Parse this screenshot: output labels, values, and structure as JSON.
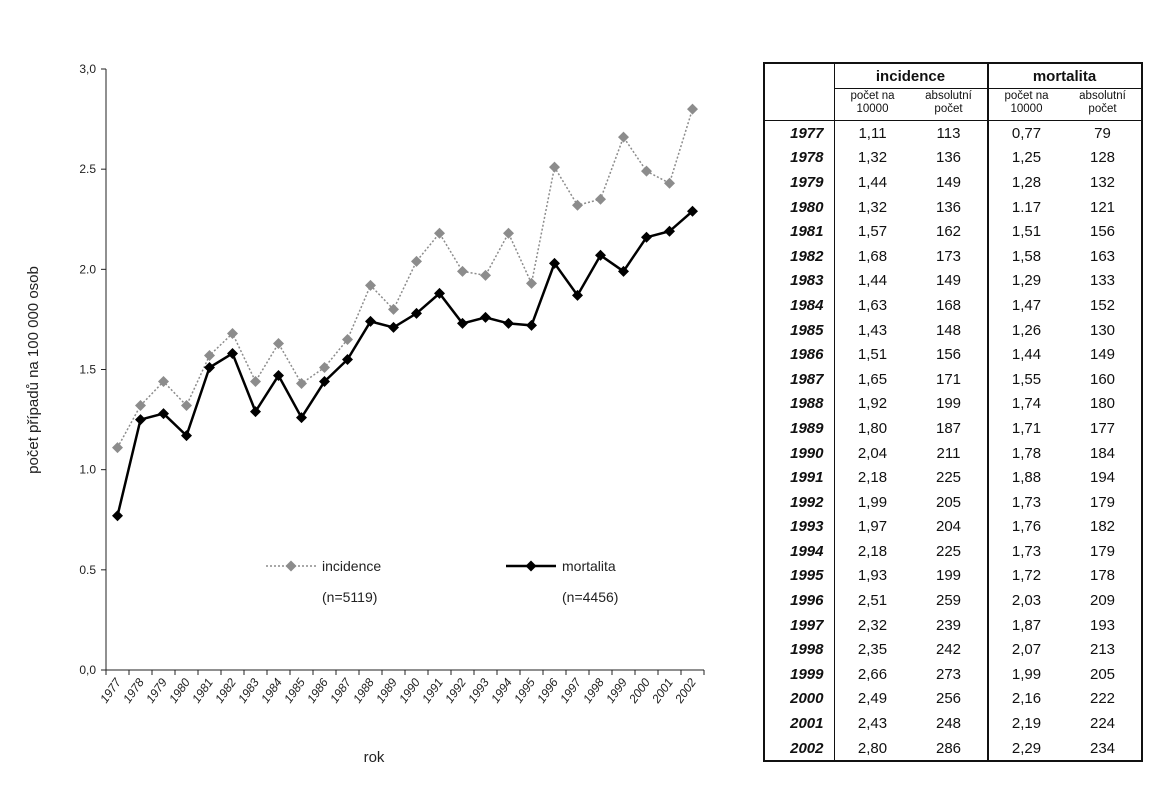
{
  "chart_data": {
    "type": "line",
    "x": [
      "1977",
      "1978",
      "1979",
      "1980",
      "1981",
      "1982",
      "1983",
      "1984",
      "1985",
      "1986",
      "1987",
      "1988",
      "1989",
      "1990",
      "1991",
      "1992",
      "1993",
      "1994",
      "1995",
      "1996",
      "1997",
      "1998",
      "1999",
      "2000",
      "2001",
      "2002"
    ],
    "series": [
      {
        "name": "incidence",
        "values": [
          1.11,
          1.32,
          1.44,
          1.32,
          1.57,
          1.68,
          1.44,
          1.63,
          1.43,
          1.51,
          1.65,
          1.92,
          1.8,
          2.04,
          2.18,
          1.99,
          1.97,
          2.18,
          1.93,
          2.51,
          2.32,
          2.35,
          2.66,
          2.49,
          2.43,
          2.8
        ],
        "color": "#8c8c8c",
        "line_style": "dotted",
        "marker": "diamond"
      },
      {
        "name": "mortalita",
        "values": [
          0.77,
          1.25,
          1.28,
          1.17,
          1.51,
          1.58,
          1.29,
          1.47,
          1.26,
          1.44,
          1.55,
          1.74,
          1.71,
          1.78,
          1.88,
          1.73,
          1.76,
          1.73,
          1.72,
          2.03,
          1.87,
          2.07,
          1.99,
          2.16,
          2.19,
          2.29
        ],
        "color": "#000000",
        "line_style": "solid",
        "marker": "diamond"
      }
    ],
    "legend": [
      {
        "label": "incidence",
        "count": "(n=5119)"
      },
      {
        "label": "mortalita",
        "count": "(n=4456)"
      }
    ],
    "xlabel": "rok",
    "ylabel": "počet případů na 100 000 osob",
    "ylim": [
      0,
      3
    ],
    "yticks": [
      "0,0",
      "0.5",
      "1.0",
      "1.5",
      "2.0",
      "2.5",
      "3,0"
    ],
    "grid": false,
    "legend_placement": "bottom-center"
  },
  "table": {
    "groups": [
      "incidence",
      "mortalita"
    ],
    "subheaders": [
      [
        "počet na",
        "10000"
      ],
      [
        "absolutní",
        "počet"
      ],
      [
        "počet na",
        "10000"
      ],
      [
        "absolutní",
        "počet"
      ]
    ],
    "rows": [
      [
        "1977",
        "1,11",
        "113",
        "0,77",
        "79"
      ],
      [
        "1978",
        "1,32",
        "136",
        "1,25",
        "128"
      ],
      [
        "1979",
        "1,44",
        "149",
        "1,28",
        "132"
      ],
      [
        "1980",
        "1,32",
        "136",
        "1.17",
        "121"
      ],
      [
        "1981",
        "1,57",
        "162",
        "1,51",
        "156"
      ],
      [
        "1982",
        "1,68",
        "173",
        "1,58",
        "163"
      ],
      [
        "1983",
        "1,44",
        "149",
        "1,29",
        "133"
      ],
      [
        "1984",
        "1,63",
        "168",
        "1,47",
        "152"
      ],
      [
        "1985",
        "1,43",
        "148",
        "1,26",
        "130"
      ],
      [
        "1986",
        "1,51",
        "156",
        "1,44",
        "149"
      ],
      [
        "1987",
        "1,65",
        "171",
        "1,55",
        "160"
      ],
      [
        "1988",
        "1,92",
        "199",
        "1,74",
        "180"
      ],
      [
        "1989",
        "1,80",
        "187",
        "1,71",
        "177"
      ],
      [
        "1990",
        "2,04",
        "211",
        "1,78",
        "184"
      ],
      [
        "1991",
        "2,18",
        "225",
        "1,88",
        "194"
      ],
      [
        "1992",
        "1,99",
        "205",
        "1,73",
        "179"
      ],
      [
        "1993",
        "1,97",
        "204",
        "1,76",
        "182"
      ],
      [
        "1994",
        "2,18",
        "225",
        "1,73",
        "179"
      ],
      [
        "1995",
        "1,93",
        "199",
        "1,72",
        "178"
      ],
      [
        "1996",
        "2,51",
        "259",
        "2,03",
        "209"
      ],
      [
        "1997",
        "2,32",
        "239",
        "1,87",
        "193"
      ],
      [
        "1998",
        "2,35",
        "242",
        "2,07",
        "213"
      ],
      [
        "1999",
        "2,66",
        "273",
        "1,99",
        "205"
      ],
      [
        "2000",
        "2,49",
        "256",
        "2,16",
        "222"
      ],
      [
        "2001",
        "2,43",
        "248",
        "2,19",
        "224"
      ],
      [
        "2002",
        "2,80",
        "286",
        "2,29",
        "234"
      ]
    ]
  }
}
